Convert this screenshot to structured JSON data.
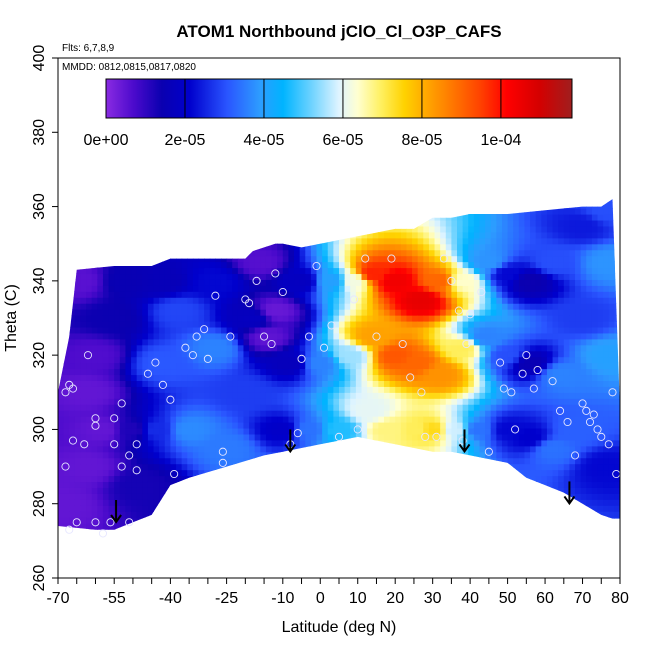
{
  "chart_data": {
    "type": "heatmap",
    "title": "ATOM1 Northbound jClO_Cl_O3P_CAFS",
    "subtitle_flights": "Flts: 6,7,8,9",
    "subtitle_dates": "MMDD: 0812,0815,0817,0820",
    "xlabel": "Latitude (deg N)",
    "ylabel": "Theta (C)",
    "xlim": [
      -70,
      80
    ],
    "ylim": [
      260,
      400
    ],
    "x_ticks": [
      -70,
      -55,
      -40,
      -25,
      -10,
      0,
      10,
      20,
      30,
      40,
      50,
      60,
      70,
      80
    ],
    "x_tick_labels": [
      "-70",
      "-55",
      "-40",
      "-25",
      "-10",
      "0",
      "10",
      "20",
      "30",
      "40",
      "50",
      "60",
      "70",
      "80"
    ],
    "y_ticks": [
      260,
      280,
      300,
      320,
      340,
      360,
      380,
      400
    ],
    "y_tick_labels": [
      "260",
      "280",
      "300",
      "320",
      "340",
      "360",
      "380",
      "400"
    ],
    "colorbar": {
      "min": 0,
      "max": 0.000118,
      "ticks": [
        0,
        2e-05,
        4e-05,
        6e-05,
        8e-05,
        0.0001
      ],
      "tick_labels": [
        "0e+00",
        "2e-05",
        "4e-05",
        "6e-05",
        "8e-05",
        "1e-04"
      ]
    },
    "upper_boundary": [
      [
        -70,
        310
      ],
      [
        -67,
        325
      ],
      [
        -65,
        343
      ],
      [
        -55,
        344
      ],
      [
        -45,
        344
      ],
      [
        -40,
        346
      ],
      [
        -35,
        346
      ],
      [
        -25,
        346
      ],
      [
        -20,
        346
      ],
      [
        -18,
        348
      ],
      [
        -15,
        349
      ],
      [
        -12,
        350
      ],
      [
        -10,
        350
      ],
      [
        -5,
        349
      ],
      [
        0,
        350
      ],
      [
        5,
        351
      ],
      [
        10,
        352
      ],
      [
        15,
        353
      ],
      [
        20,
        354
      ],
      [
        25,
        354
      ],
      [
        30,
        357
      ],
      [
        35,
        357
      ],
      [
        40,
        358
      ],
      [
        50,
        358
      ],
      [
        60,
        359
      ],
      [
        70,
        360
      ],
      [
        75,
        360
      ],
      [
        78,
        362
      ]
    ],
    "lower_boundary": [
      [
        -70,
        274
      ],
      [
        -60,
        273
      ],
      [
        -55,
        273
      ],
      [
        -50,
        275
      ],
      [
        -45,
        277
      ],
      [
        -40,
        285
      ],
      [
        -35,
        287
      ],
      [
        -25,
        290
      ],
      [
        -15,
        293
      ],
      [
        -10,
        294
      ],
      [
        -5,
        295
      ],
      [
        0,
        296
      ],
      [
        5,
        297
      ],
      [
        10,
        298
      ],
      [
        15,
        297
      ],
      [
        20,
        296
      ],
      [
        25,
        295
      ],
      [
        30,
        294
      ],
      [
        35,
        294
      ],
      [
        40,
        293
      ],
      [
        50,
        291
      ],
      [
        55,
        287
      ],
      [
        60,
        285
      ],
      [
        65,
        283
      ],
      [
        70,
        280
      ],
      [
        75,
        277
      ],
      [
        78,
        276
      ],
      [
        80,
        276
      ],
      [
        80,
        305
      ]
    ],
    "value_field": [
      {
        "lat": -68,
        "theta": 280,
        "value": 4.5e-06
      },
      {
        "lat": -62,
        "theta": 290,
        "value": 4.5e-06
      },
      {
        "lat": -58,
        "theta": 300,
        "value": 4.5e-06
      },
      {
        "lat": -62,
        "theta": 310,
        "value": 4.5e-06
      },
      {
        "lat": -60,
        "theta": 320,
        "value": 6.5e-06
      },
      {
        "lat": -64,
        "theta": 340,
        "value": 5.5e-06
      },
      {
        "lat": -55,
        "theta": 330,
        "value": 1.4e-05
      },
      {
        "lat": -50,
        "theta": 300,
        "value": 1.2e-05
      },
      {
        "lat": -48,
        "theta": 285,
        "value": 1.3e-05
      },
      {
        "lat": -52,
        "theta": 340,
        "value": 1.5e-05
      },
      {
        "lat": -44,
        "theta": 300,
        "value": 2.6e-05
      },
      {
        "lat": -42,
        "theta": 318,
        "value": 3.1e-05
      },
      {
        "lat": -38,
        "theta": 332,
        "value": 2.9e-05
      },
      {
        "lat": -42,
        "theta": 340,
        "value": 1.6e-05
      },
      {
        "lat": -35,
        "theta": 300,
        "value": 3.7e-05
      },
      {
        "lat": -28,
        "theta": 322,
        "value": 3.6e-05
      },
      {
        "lat": -25,
        "theta": 295,
        "value": 3.5e-05
      },
      {
        "lat": -28,
        "theta": 340,
        "value": 2.2e-05
      },
      {
        "lat": -20,
        "theta": 310,
        "value": 2.8e-05
      },
      {
        "lat": -18,
        "theta": 330,
        "value": 1.8e-05
      },
      {
        "lat": -14,
        "theta": 325,
        "value": 5e-06
      },
      {
        "lat": -16,
        "theta": 345,
        "value": 6e-06
      },
      {
        "lat": -12,
        "theta": 332,
        "value": 4e-06
      },
      {
        "lat": -10,
        "theta": 300,
        "value": 2e-05
      },
      {
        "lat": -8,
        "theta": 318,
        "value": 1.7e-05
      },
      {
        "lat": -5,
        "theta": 340,
        "value": 1.8e-05
      },
      {
        "lat": -3,
        "theta": 300,
        "value": 3.4e-05
      },
      {
        "lat": 0,
        "theta": 318,
        "value": 3.6e-05
      },
      {
        "lat": 3,
        "theta": 340,
        "value": 4e-05
      },
      {
        "lat": 5,
        "theta": 300,
        "value": 4.7e-05
      },
      {
        "lat": 8,
        "theta": 320,
        "value": 5.5e-05
      },
      {
        "lat": 9,
        "theta": 340,
        "value": 6.2e-05
      },
      {
        "lat": 13,
        "theta": 305,
        "value": 6e-05
      },
      {
        "lat": 14,
        "theta": 325,
        "value": 8.2e-05
      },
      {
        "lat": 14,
        "theta": 342,
        "value": 9.8e-05
      },
      {
        "lat": 18,
        "theta": 300,
        "value": 6.8e-05
      },
      {
        "lat": 20,
        "theta": 320,
        "value": 9.2e-05
      },
      {
        "lat": 20,
        "theta": 340,
        "value": 0.000104
      },
      {
        "lat": 26,
        "theta": 300,
        "value": 7e-05
      },
      {
        "lat": 26,
        "theta": 318,
        "value": 9e-05
      },
      {
        "lat": 27,
        "theta": 335,
        "value": 0.000106
      },
      {
        "lat": 30,
        "theta": 300,
        "value": 7.4e-05
      },
      {
        "lat": 32,
        "theta": 315,
        "value": 8.4e-05
      },
      {
        "lat": 32,
        "theta": 340,
        "value": 9e-05
      },
      {
        "lat": 36,
        "theta": 300,
        "value": 5.8e-05
      },
      {
        "lat": 38,
        "theta": 322,
        "value": 7e-05
      },
      {
        "lat": 38,
        "theta": 340,
        "value": 6.4e-05
      },
      {
        "lat": 42,
        "theta": 300,
        "value": 3.4e-05
      },
      {
        "lat": 44,
        "theta": 325,
        "value": 3.6e-05
      },
      {
        "lat": 45,
        "theta": 345,
        "value": 3.8e-05
      },
      {
        "lat": 50,
        "theta": 300,
        "value": 2.2e-05
      },
      {
        "lat": 50,
        "theta": 320,
        "value": 3e-05
      },
      {
        "lat": 50,
        "theta": 342,
        "value": 2.2e-05
      },
      {
        "lat": 56,
        "theta": 298,
        "value": 2.1e-05
      },
      {
        "lat": 56,
        "theta": 318,
        "value": 1.5e-05
      },
      {
        "lat": 56,
        "theta": 340,
        "value": 1.4e-05
      },
      {
        "lat": 62,
        "theta": 295,
        "value": 3.4e-05
      },
      {
        "lat": 64,
        "theta": 315,
        "value": 3.6e-05
      },
      {
        "lat": 62,
        "theta": 345,
        "value": 3e-05
      },
      {
        "lat": 68,
        "theta": 300,
        "value": 3.2e-05
      },
      {
        "lat": 70,
        "theta": 330,
        "value": 2.8e-05
      },
      {
        "lat": 70,
        "theta": 355,
        "value": 2.4e-05
      },
      {
        "lat": 76,
        "theta": 290,
        "value": 2.2e-05
      },
      {
        "lat": 77,
        "theta": 320,
        "value": 4e-05
      },
      {
        "lat": 77,
        "theta": 345,
        "value": 3.8e-05
      },
      {
        "lat": 76,
        "theta": 359,
        "value": 3e-05
      }
    ],
    "observations": [
      [
        -67,
        273
      ],
      [
        -65,
        275
      ],
      [
        -60,
        275
      ],
      [
        -58,
        272
      ],
      [
        -56,
        275
      ],
      [
        -51,
        275
      ],
      [
        -68,
        290
      ],
      [
        -66,
        297
      ],
      [
        -63,
        296
      ],
      [
        -60,
        301
      ],
      [
        -55,
        296
      ],
      [
        -53,
        290
      ],
      [
        -51,
        293
      ],
      [
        -49,
        289
      ],
      [
        -49,
        296
      ],
      [
        -68,
        310
      ],
      [
        -67,
        312
      ],
      [
        -66,
        311
      ],
      [
        -60,
        303
      ],
      [
        -55,
        303
      ],
      [
        -53,
        307
      ],
      [
        -62,
        320
      ],
      [
        -46,
        315
      ],
      [
        -44,
        318
      ],
      [
        -42,
        312
      ],
      [
        -40,
        308
      ],
      [
        -39,
        288
      ],
      [
        -36,
        322
      ],
      [
        -34,
        320
      ],
      [
        -33,
        325
      ],
      [
        -31,
        327
      ],
      [
        -30,
        319
      ],
      [
        -28,
        336
      ],
      [
        -26,
        294
      ],
      [
        -26,
        291
      ],
      [
        -24,
        325
      ],
      [
        -20,
        335
      ],
      [
        -19,
        334
      ],
      [
        -17,
        340
      ],
      [
        -15,
        325
      ],
      [
        -13,
        323
      ],
      [
        -12,
        342
      ],
      [
        -10,
        337
      ],
      [
        -8,
        296
      ],
      [
        -6,
        299
      ],
      [
        -5,
        319
      ],
      [
        -3,
        325
      ],
      [
        -1,
        344
      ],
      [
        1,
        322
      ],
      [
        3,
        328
      ],
      [
        5,
        298
      ],
      [
        9,
        335
      ],
      [
        10,
        300
      ],
      [
        12,
        346
      ],
      [
        15,
        325
      ],
      [
        19,
        346
      ],
      [
        22,
        323
      ],
      [
        24,
        314
      ],
      [
        27,
        310
      ],
      [
        28,
        298
      ],
      [
        31,
        298
      ],
      [
        33,
        346
      ],
      [
        35,
        340
      ],
      [
        37,
        332
      ],
      [
        38,
        297
      ],
      [
        39,
        323
      ],
      [
        40,
        331
      ],
      [
        43,
        337
      ],
      [
        45,
        294
      ],
      [
        48,
        318
      ],
      [
        49,
        311
      ],
      [
        51,
        310
      ],
      [
        52,
        300
      ],
      [
        54,
        315
      ],
      [
        55,
        320
      ],
      [
        57,
        311
      ],
      [
        58,
        316
      ],
      [
        62,
        313
      ],
      [
        64,
        305
      ],
      [
        66,
        302
      ],
      [
        68,
        293
      ],
      [
        70,
        307
      ],
      [
        71,
        305
      ],
      [
        72,
        302
      ],
      [
        73,
        304
      ],
      [
        74,
        300
      ],
      [
        75,
        298
      ],
      [
        77,
        296
      ],
      [
        78,
        310
      ],
      [
        79,
        288
      ]
    ],
    "arrows": [
      [
        -54.5,
        281
      ],
      [
        -8,
        300
      ],
      [
        38.5,
        300
      ],
      [
        66.5,
        286
      ]
    ]
  }
}
